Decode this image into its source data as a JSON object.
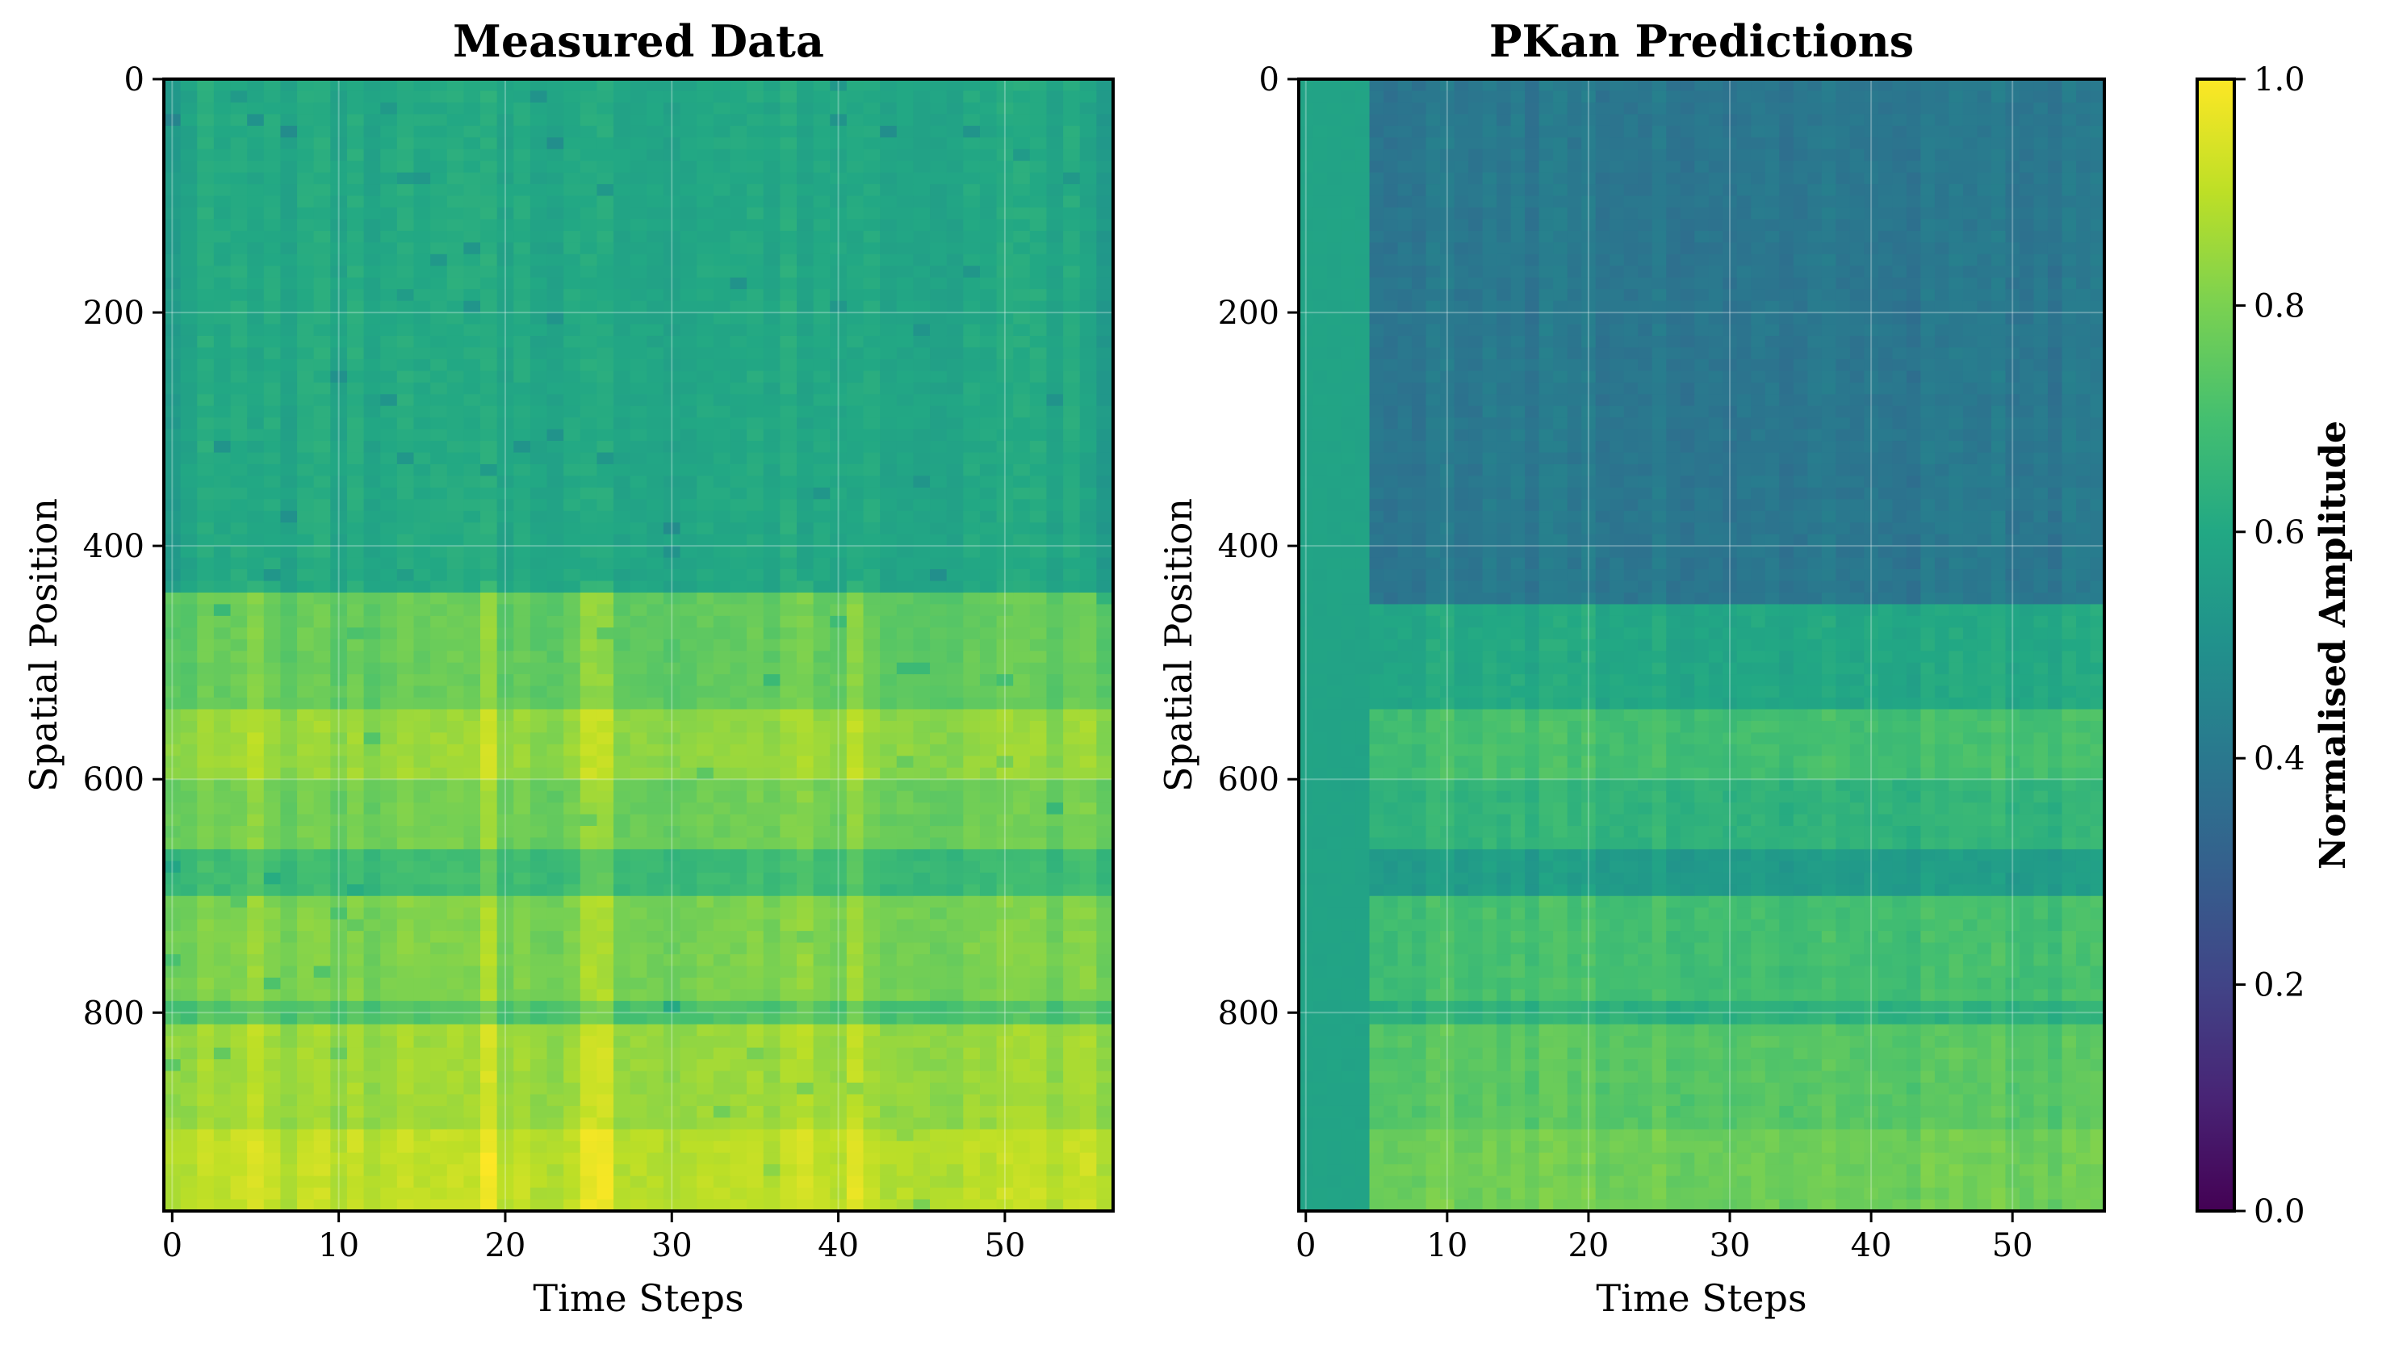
{
  "chart_data": [
    {
      "type": "heatmap",
      "title": "Measured Data",
      "xlabel": "Time Steps",
      "ylabel": "Spatial Position",
      "xlim": [
        -0.5,
        56.5
      ],
      "ylim": [
        970,
        0
      ],
      "xticks": [
        0,
        10,
        20,
        30,
        40,
        50
      ],
      "yticks": [
        0,
        200,
        400,
        600,
        800
      ],
      "grid": true,
      "colormap": "viridis",
      "bands": [
        {
          "from": 0,
          "to": 440,
          "value": 0.6
        },
        {
          "from": 440,
          "to": 540,
          "value": 0.76
        },
        {
          "from": 540,
          "to": 600,
          "value": 0.84
        },
        {
          "from": 600,
          "to": 660,
          "value": 0.78
        },
        {
          "from": 660,
          "to": 705,
          "value": 0.68
        },
        {
          "from": 705,
          "to": 790,
          "value": 0.8
        },
        {
          "from": 790,
          "to": 815,
          "value": 0.72
        },
        {
          "from": 815,
          "to": 900,
          "value": 0.85
        },
        {
          "from": 900,
          "to": 970,
          "value": 0.9
        }
      ],
      "bright_columns": [
        5,
        19,
        25,
        26,
        38,
        41
      ],
      "lower_edge_columns": [
        0,
        55,
        56
      ]
    },
    {
      "type": "heatmap",
      "title": "PKan Predictions",
      "xlabel": "Time Steps",
      "ylabel": "Spatial Position",
      "xlim": [
        -0.5,
        56.5
      ],
      "ylim": [
        970,
        0
      ],
      "xticks": [
        0,
        10,
        20,
        30,
        40,
        50
      ],
      "yticks": [
        0,
        200,
        400,
        600,
        800
      ],
      "grid": true,
      "colormap": "viridis",
      "constant_columns": {
        "from": 0,
        "to": 4,
        "value": 0.58
      },
      "bands": [
        {
          "from": 0,
          "to": 455,
          "value": 0.4
        },
        {
          "from": 455,
          "to": 540,
          "value": 0.6
        },
        {
          "from": 540,
          "to": 600,
          "value": 0.7
        },
        {
          "from": 600,
          "to": 660,
          "value": 0.65
        },
        {
          "from": 660,
          "to": 705,
          "value": 0.55
        },
        {
          "from": 705,
          "to": 790,
          "value": 0.7
        },
        {
          "from": 790,
          "to": 815,
          "value": 0.64
        },
        {
          "from": 815,
          "to": 900,
          "value": 0.74
        },
        {
          "from": 900,
          "to": 970,
          "value": 0.78
        }
      ]
    }
  ],
  "colorbar": {
    "label": "Normalised Amplitude",
    "range": [
      0.0,
      1.0
    ],
    "ticks": [
      "0.0",
      "0.2",
      "0.4",
      "0.6",
      "0.8",
      "1.0"
    ],
    "tick_values": [
      0.0,
      0.2,
      0.4,
      0.6,
      0.8,
      1.0
    ]
  }
}
